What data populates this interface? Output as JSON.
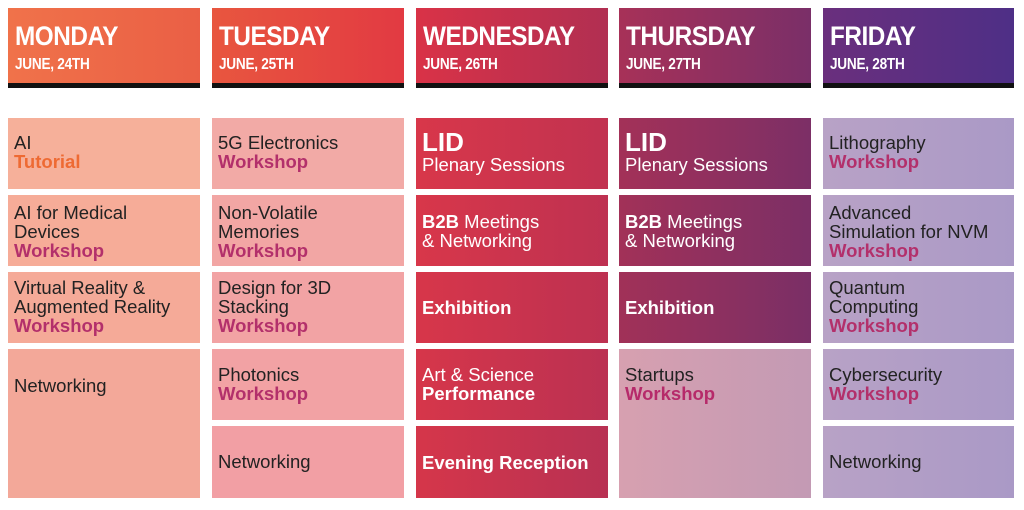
{
  "days": [
    {
      "name": "MONDAY",
      "date": "JUNE, 24TH",
      "color": "#ee7a50"
    },
    {
      "name": "TUESDAY",
      "date": "JUNE, 25TH",
      "color": "#e5443f"
    },
    {
      "name": "WEDNESDAY",
      "date": "JUNE, 26TH",
      "color": "#c8314a"
    },
    {
      "name": "THURSDAY",
      "date": "JUNE, 27TH",
      "color": "#92305c"
    },
    {
      "name": "FRIDAY",
      "date": "JUNE, 28TH",
      "color": "#5a2f82"
    }
  ],
  "monday": [
    {
      "title": "AI",
      "type": "Tutorial"
    },
    {
      "title": "AI for Medical\nDevices",
      "type": "Workshop"
    },
    {
      "title": "Virtual Reality &\nAugmented Reality",
      "type": "Workshop"
    },
    {
      "title": "Networking"
    }
  ],
  "tuesday": [
    {
      "title": "5G Electronics",
      "type": "Workshop"
    },
    {
      "title": "Non-Volatile\nMemories",
      "type": "Workshop"
    },
    {
      "title": "Design for 3D\nStacking",
      "type": "Workshop"
    },
    {
      "title": "Photonics",
      "type": "Workshop"
    },
    {
      "title": "Networking"
    }
  ],
  "wednesday": [
    {
      "title": "LID",
      "sub": "Plenary Sessions"
    },
    {
      "bold": "B2B",
      "title": " Meetings\n& Networking"
    },
    {
      "bold": "Exhibition"
    },
    {
      "title": "Art & Science",
      "bold2": "Performance"
    },
    {
      "bold": "Evening Reception"
    }
  ],
  "thursday": [
    {
      "title": "LID",
      "sub": "Plenary Sessions"
    },
    {
      "bold": "B2B",
      "title": " Meetings\n& Networking"
    },
    {
      "bold": "Exhibition"
    },
    {
      "title": "Startups",
      "type": "Workshop"
    }
  ],
  "friday": [
    {
      "title": "Lithography",
      "type": "Workshop"
    },
    {
      "title": "Advanced\nSimulation for NVM",
      "type": "Workshop"
    },
    {
      "title": "Quantum\nComputing",
      "type": "Workshop"
    },
    {
      "title": "Cybersecurity",
      "type": "Workshop"
    },
    {
      "title": "Networking"
    }
  ]
}
